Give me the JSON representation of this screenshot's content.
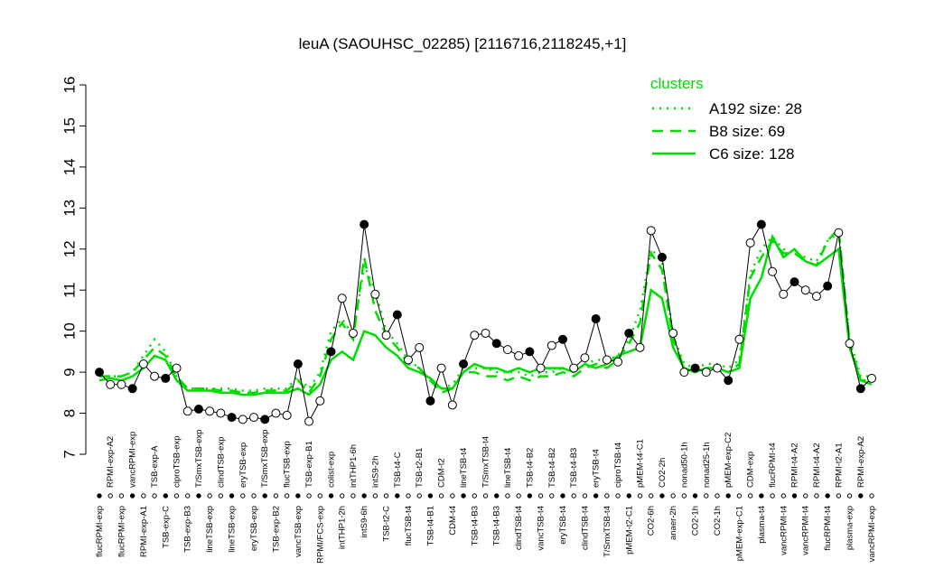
{
  "chart_data": {
    "type": "line",
    "title": "leuA (SAOUHSC_02285) [2116716,2118245,+1]",
    "legend_title": "clusters",
    "legend_position": "top-right",
    "ylim": [
      7,
      16
    ],
    "yticks": [
      7,
      8,
      9,
      10,
      11,
      12,
      13,
      14,
      15,
      16
    ],
    "categories": [
      "flucRPMI-exp",
      "RPMI-exp-A2",
      "flucRPMI-exp",
      "vancRPMI-exp",
      "RPMI-exp-A1",
      "TSB-exp-A",
      "TSB-exp-C",
      "ciproTSB-exp",
      "TSB-exp-B3",
      "T/SmxTSB-exp",
      "lineTSB-exp",
      "clindTSB-exp",
      "lineTSB-exp",
      "eryTSB-exp",
      "eryTSB-exp",
      "T/SmxTSB-exp",
      "TSB-exp-B2",
      "flucTSB-exp",
      "vancTSB-exp",
      "TSB-exp-B1",
      "RPMI/FCS-exp",
      "colist-exp",
      "intTHP1-2h",
      "intTHP1-6h",
      "intS9-6h",
      "intS9-2h",
      "TSB-t2-C",
      "TSB-t4-C",
      "flucTSB-t4",
      "TSB-t2-B1",
      "TSB-t4-B1",
      "CDM-t2",
      "CDM-t4",
      "lineTSB-t4",
      "TSB-t4-B3",
      "T/SmxTSB-t4",
      "TSB-t4-B3",
      "lineTSB-t4",
      "clindTSB-t4",
      "TSB-t4-B2",
      "vancTSB-t4",
      "TSB-t4-B2",
      "eryTSB-t4",
      "TSB-t4-B3",
      "clindTSB-t4",
      "eryTSB-t4",
      "T/SmxTSB-t4",
      "ciproTSB-t4",
      "pMEM-t2-C1",
      "pMEM-t4-C1",
      "CO2-6h",
      "CO2-2h",
      "anaer-2h",
      "nonad50-1h",
      "CO2-1h",
      "nonad25-1h",
      "CO2-1h",
      "pMEM-exp-C2",
      "pMEM-exp-C1",
      "CDM-exp",
      "plasma-t4",
      "flucRPMI-t4",
      "vancRPMI-t4",
      "RPMI-t4-A2",
      "vancRPMI-t4",
      "RPMI-t4-A2",
      "flucRPMI-t4",
      "RPMI-t2-A1",
      "plasma-exp",
      "RPMI-exp-A2",
      "vancRPMI-exp"
    ],
    "values": [
      9.0,
      8.7,
      8.7,
      8.6,
      9.2,
      8.9,
      8.85,
      9.1,
      8.05,
      8.1,
      8.05,
      8.0,
      7.9,
      7.85,
      7.9,
      7.85,
      8.0,
      7.95,
      9.2,
      7.8,
      8.3,
      9.5,
      10.8,
      9.95,
      12.6,
      10.9,
      9.9,
      10.4,
      9.3,
      9.6,
      8.3,
      9.1,
      8.2,
      9.2,
      9.9,
      9.95,
      9.7,
      9.55,
      9.4,
      9.5,
      9.1,
      9.65,
      9.8,
      9.1,
      9.35,
      10.3,
      9.3,
      9.25,
      9.95,
      9.6,
      12.45,
      11.8,
      9.95,
      9.0,
      9.1,
      9.0,
      9.1,
      8.8,
      9.8,
      12.15,
      12.6,
      11.45,
      10.9,
      11.2,
      11.0,
      10.85,
      11.1,
      12.4,
      9.7,
      8.6,
      8.85
    ],
    "color": "#000000",
    "series": [
      {
        "name": "A192 size: 28",
        "color": "#00dd00",
        "dash": "dotted",
        "values": [
          8.9,
          8.9,
          8.9,
          9.0,
          9.4,
          9.8,
          9.5,
          8.9,
          8.6,
          8.6,
          8.6,
          8.6,
          8.6,
          8.55,
          8.55,
          8.6,
          8.6,
          8.6,
          8.9,
          8.6,
          9.0,
          10.0,
          10.3,
          9.9,
          11.6,
          11.0,
          10.0,
          9.7,
          9.3,
          9.1,
          8.8,
          8.6,
          8.7,
          9.1,
          9.1,
          9.1,
          9.0,
          9.0,
          9.0,
          8.9,
          9.0,
          9.0,
          9.1,
          9.0,
          9.2,
          9.3,
          9.3,
          9.4,
          9.8,
          10.5,
          12.0,
          11.7,
          9.9,
          9.2,
          9.1,
          9.2,
          9.2,
          9.1,
          9.3,
          11.4,
          12.0,
          12.3,
          12.0,
          11.9,
          11.8,
          11.7,
          12.2,
          12.4,
          9.8,
          8.9,
          8.9
        ]
      },
      {
        "name": "B8 size: 69",
        "color": "#00dd00",
        "dash": "dashed",
        "values": [
          8.9,
          8.9,
          8.9,
          9.0,
          9.3,
          9.6,
          9.4,
          8.9,
          8.6,
          8.6,
          8.6,
          8.55,
          8.55,
          8.5,
          8.5,
          8.55,
          8.55,
          8.55,
          8.8,
          8.5,
          8.9,
          9.8,
          10.2,
          9.8,
          11.8,
          10.5,
          9.9,
          9.6,
          9.2,
          9.1,
          8.8,
          8.5,
          8.6,
          9.0,
          9.0,
          8.9,
          8.9,
          8.8,
          8.9,
          8.8,
          8.9,
          8.9,
          9.0,
          8.9,
          9.1,
          9.2,
          9.1,
          9.3,
          9.7,
          10.2,
          11.9,
          11.5,
          9.8,
          9.1,
          9.0,
          9.1,
          9.1,
          9.0,
          9.2,
          11.3,
          11.8,
          12.2,
          11.9,
          11.9,
          11.7,
          11.6,
          12.2,
          12.5,
          9.7,
          8.8,
          8.8
        ]
      },
      {
        "name": "C6 size: 128",
        "color": "#00dd00",
        "dash": "solid",
        "values": [
          8.8,
          8.85,
          8.8,
          8.9,
          9.1,
          9.4,
          9.3,
          8.8,
          8.55,
          8.55,
          8.55,
          8.5,
          8.5,
          8.45,
          8.45,
          8.5,
          8.5,
          8.5,
          8.6,
          8.45,
          8.7,
          9.3,
          9.5,
          9.3,
          10.0,
          9.9,
          9.6,
          9.4,
          9.1,
          9.0,
          8.85,
          8.6,
          8.6,
          9.0,
          9.2,
          9.1,
          9.1,
          9.0,
          9.1,
          9.0,
          9.1,
          9.1,
          9.1,
          9.0,
          9.2,
          9.1,
          9.2,
          9.4,
          9.5,
          9.6,
          11.0,
          10.8,
          9.6,
          9.1,
          9.0,
          9.1,
          9.1,
          9.0,
          9.1,
          10.8,
          11.3,
          12.3,
          11.8,
          12.0,
          11.7,
          11.6,
          11.8,
          12.0,
          9.6,
          8.8,
          8.7
        ]
      }
    ]
  }
}
